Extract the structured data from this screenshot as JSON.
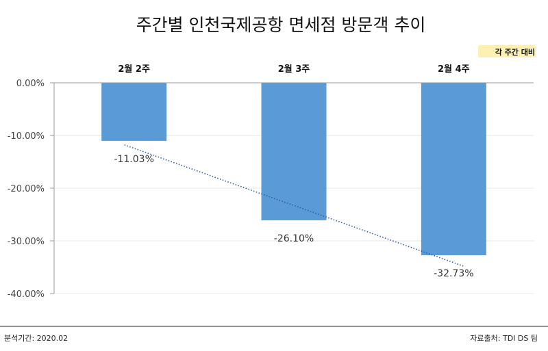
{
  "title": "주간별 인천국제공항 면세점 방문객 추이",
  "note": "각 주간 대비",
  "colors": {
    "bar": "#5b9bd5",
    "trend": "#2e5aa8",
    "note_highlight": "#fdf0b3",
    "axis": "#9a9a9a",
    "grid": "#e5e5e5"
  },
  "footer": {
    "left": "분석기간: 2020.02",
    "right": "자료출처: TDI DS 팀"
  },
  "chart_data": {
    "type": "bar",
    "categories": [
      "2월 2주",
      "2월 3주",
      "2월 4주"
    ],
    "values": [
      -11.03,
      -26.1,
      -32.73
    ],
    "data_labels": [
      "-11.03%",
      "-26.10%",
      "-32.73%"
    ],
    "y_ticks": [
      "0.00%",
      "-10.00%",
      "-20.00%",
      "-30.00%",
      "-40.00%"
    ],
    "ylim": [
      -40,
      0
    ],
    "category_labels_position": "top",
    "trendline": "linear, dotted",
    "grid": true,
    "legend": "none"
  }
}
